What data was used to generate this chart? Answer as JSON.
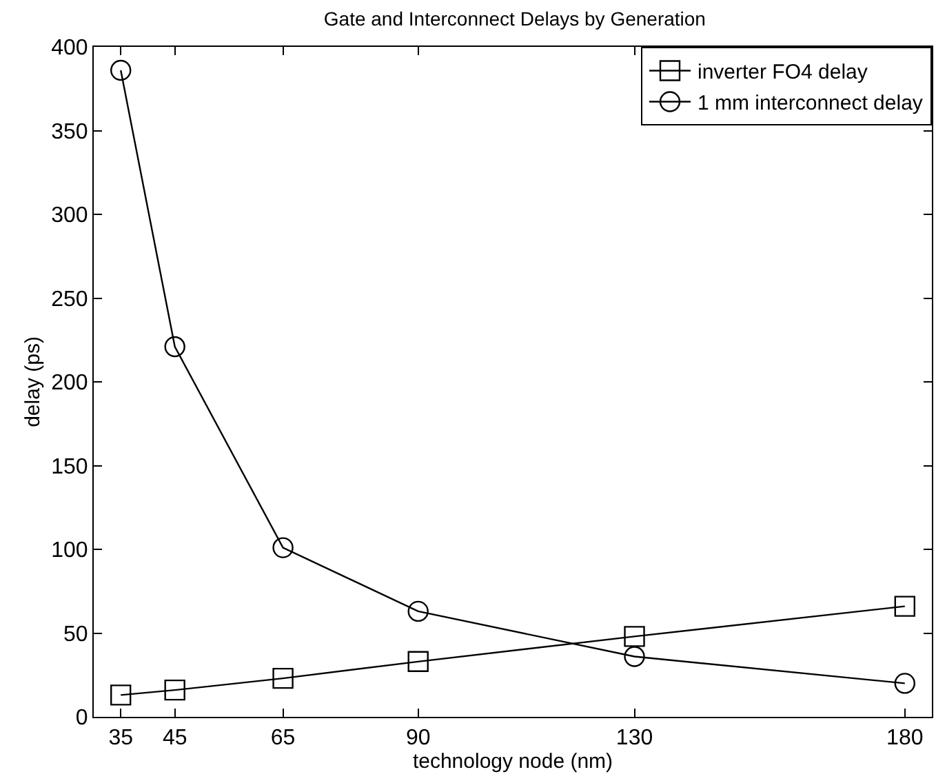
{
  "chart_data": {
    "type": "line",
    "title": "Gate and Interconnect Delays by Generation",
    "xlabel": "technology node (nm)",
    "ylabel": "delay (ps)",
    "x": [
      35,
      45,
      65,
      90,
      130,
      180
    ],
    "series": [
      {
        "name": "inverter FO4 delay",
        "color": "#000000",
        "marker": "square",
        "values": [
          13,
          16,
          23,
          33,
          48,
          66
        ]
      },
      {
        "name": "1 mm interconnect delay",
        "color": "#000000",
        "marker": "circle",
        "values": [
          386,
          221,
          101,
          63,
          36,
          20
        ]
      }
    ],
    "xlim": [
      30,
      185
    ],
    "xticks": [
      35,
      45,
      65,
      90,
      130,
      180
    ],
    "ylim": [
      0,
      400
    ],
    "yticks": [
      0,
      50,
      100,
      150,
      200,
      250,
      300,
      350,
      400
    ],
    "grid": false,
    "legend": "top right",
    "line_style": "solid"
  }
}
